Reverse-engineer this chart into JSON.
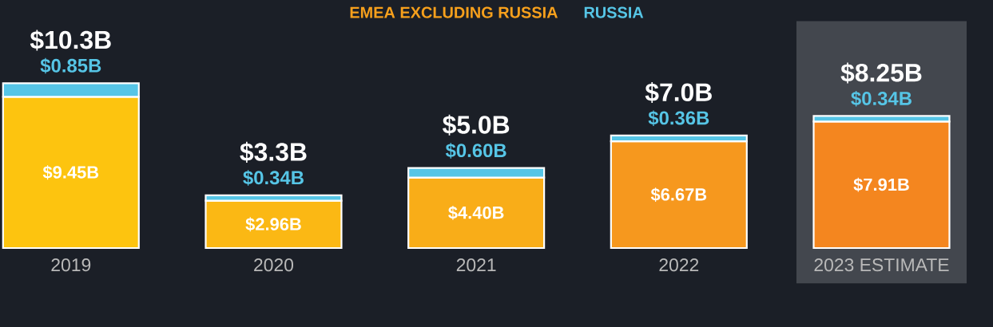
{
  "chart_data": {
    "type": "bar",
    "stacked": true,
    "legend": "top",
    "categories": [
      "2019",
      "2020",
      "2021",
      "2022",
      "2023 ESTIMATE"
    ],
    "series": [
      {
        "name": "EMEA EXCLUDING RUSSIA",
        "color": "#f7a01c",
        "colors": [
          "#fdc40f",
          "#fbb814",
          "#f9ad18",
          "#f6981e",
          "#f4861f"
        ],
        "values": [
          9.45,
          2.96,
          4.4,
          6.67,
          7.91
        ],
        "value_labels": [
          "$9.45B",
          "$2.96B",
          "$4.40B",
          "$6.67B",
          "$7.91B"
        ]
      },
      {
        "name": "RUSSIA",
        "color": "#56c5e6",
        "values": [
          0.85,
          0.34,
          0.6,
          0.36,
          0.34
        ],
        "value_labels": [
          "$0.85B",
          "$0.34B",
          "$0.60B",
          "$0.36B",
          "$0.34B"
        ]
      }
    ],
    "totals": [
      "$10.3B",
      "$3.3B",
      "$5.0B",
      "$7.0B",
      "$8.25B"
    ],
    "bands": [
      {
        "axis": "x",
        "from": "2023 ESTIMATE",
        "to": "2023 ESTIMATE",
        "color": "#43474e"
      }
    ]
  }
}
